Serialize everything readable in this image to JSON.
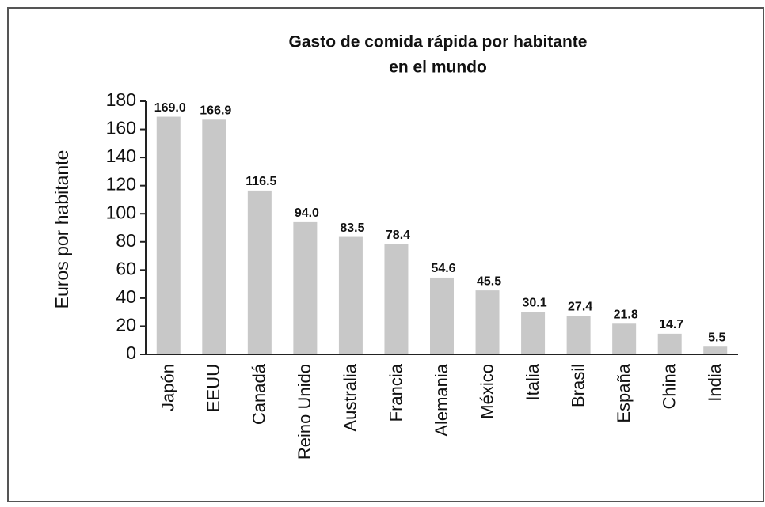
{
  "chart_data": {
    "type": "bar",
    "title": "Gasto de comida rápida por habitante",
    "subtitle": "en el mundo",
    "y_label": "Euros por habitante",
    "categories": [
      "Japón",
      "EEUU",
      "Canadá",
      "Reino Unido",
      "Australia",
      "Francia",
      "Alemania",
      "México",
      "Italia",
      "Brasil",
      "España",
      "China",
      "India"
    ],
    "values": [
      169.0,
      166.9,
      116.5,
      94.0,
      83.5,
      78.4,
      54.6,
      45.5,
      30.1,
      27.4,
      21.8,
      14.7,
      5.5
    ],
    "value_labels": [
      "169.0",
      "166.9",
      "116.5",
      "94.0",
      "83.5",
      "78.4",
      "54.6",
      "45.5",
      "30.1",
      "27.4",
      "21.8",
      "14.7",
      "5.5"
    ],
    "color": "#c8c8c8",
    "ylim": [
      0,
      180
    ],
    "yticks": [
      0,
      20,
      40,
      60,
      80,
      100,
      120,
      140,
      160,
      180
    ],
    "grid": false
  }
}
